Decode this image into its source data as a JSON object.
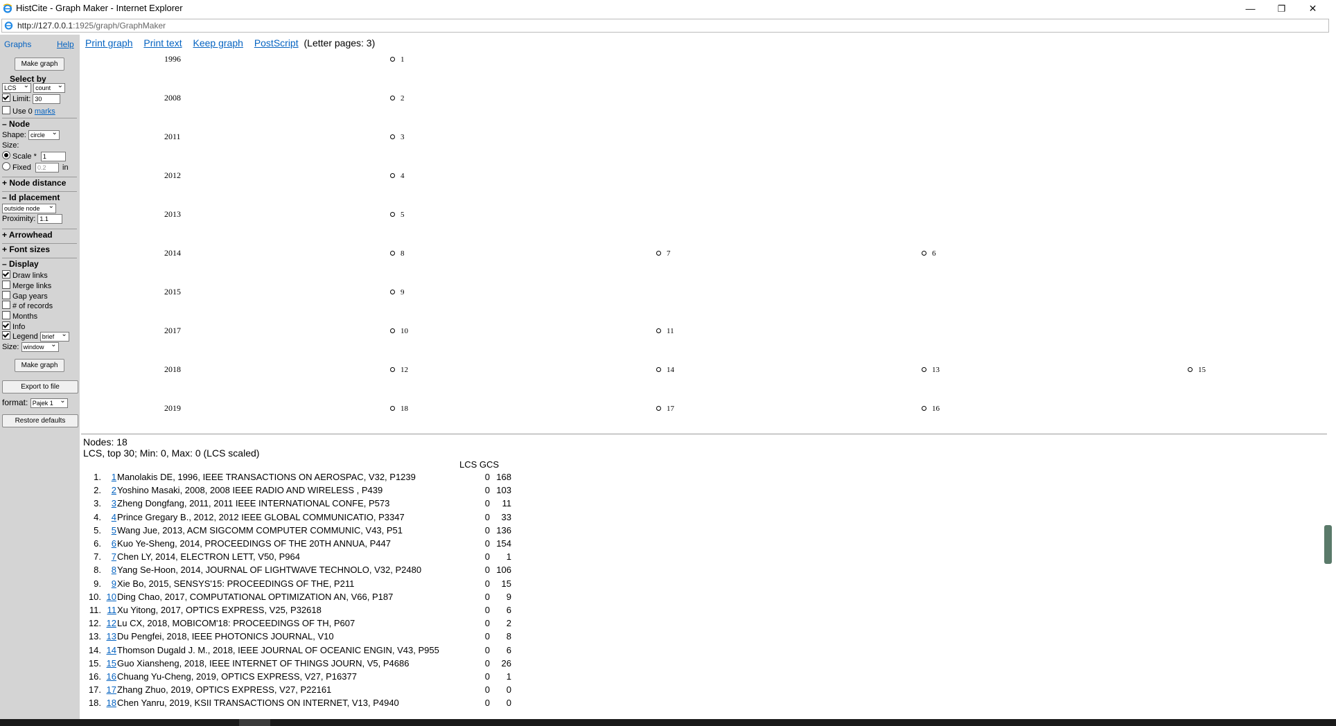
{
  "window": {
    "title": "HistCite - Graph Maker - Internet Explorer",
    "url_host": "http://127.0.0.1",
    "url_path": ":1925/graph/GraphMaker",
    "minimize_glyph": "—",
    "restore_glyph": "❐",
    "close_glyph": "✕"
  },
  "sidebar": {
    "graphs_link": "Graphs",
    "help_link": "Help",
    "make_graph_button": "Make graph",
    "select_by_label": "Select by",
    "select_by_value": "LCS",
    "count_value": "count",
    "limit_label": "Limit:",
    "limit_value": "30",
    "use_label": "Use 0",
    "marks_link": "marks",
    "node_section": "– Node",
    "shape_label": "Shape:",
    "shape_value": "circle",
    "size_label": "Size:",
    "scale_label": "Scale *",
    "scale_value": "1",
    "fixed_label": "Fixed",
    "fixed_value": "0.2",
    "fixed_unit": "in",
    "node_distance_section": "+ Node distance",
    "id_placement_section": "– Id placement",
    "id_placement_value": "outside node",
    "proximity_label": "Proximity:",
    "proximity_value": "1.1",
    "arrowhead_section": "+ Arrowhead",
    "font_sizes_section": "+ Font sizes",
    "display_section": "– Display",
    "draw_links": "Draw links",
    "merge_links": "Merge links",
    "gap_years": "Gap years",
    "num_records": "# of records",
    "months": "Months",
    "info": "Info",
    "legend": "Legend",
    "legend_value": "brief",
    "size_label2": "Size:",
    "size_value": "window",
    "make_graph_button2": "Make graph",
    "export_button": "Export to file",
    "format_label": "format:",
    "format_value": "Pajek 1",
    "restore_button": "Restore defaults"
  },
  "toplinks": {
    "print_graph": "Print graph",
    "print_text": "Print text",
    "keep_graph": "Keep graph",
    "postscript": "PostScript",
    "letter_pages": "(Letter pages: 3)"
  },
  "graph": {
    "years": [
      "1996",
      "2008",
      "2011",
      "2012",
      "2013",
      "2014",
      "2015",
      "2017",
      "2018",
      "2019"
    ],
    "nodes": [
      {
        "id": "1",
        "year": "1996",
        "col": 0
      },
      {
        "id": "2",
        "year": "2008",
        "col": 0
      },
      {
        "id": "3",
        "year": "2011",
        "col": 0
      },
      {
        "id": "4",
        "year": "2012",
        "col": 0
      },
      {
        "id": "5",
        "year": "2013",
        "col": 0
      },
      {
        "id": "8",
        "year": "2014",
        "col": 0
      },
      {
        "id": "7",
        "year": "2014",
        "col": 1
      },
      {
        "id": "6",
        "year": "2014",
        "col": 2
      },
      {
        "id": "9",
        "year": "2015",
        "col": 0
      },
      {
        "id": "10",
        "year": "2017",
        "col": 0
      },
      {
        "id": "11",
        "year": "2017",
        "col": 1
      },
      {
        "id": "12",
        "year": "2018",
        "col": 0
      },
      {
        "id": "14",
        "year": "2018",
        "col": 1
      },
      {
        "id": "13",
        "year": "2018",
        "col": 2
      },
      {
        "id": "15",
        "year": "2018",
        "col": 3
      },
      {
        "id": "18",
        "year": "2019",
        "col": 0
      },
      {
        "id": "17",
        "year": "2019",
        "col": 1
      },
      {
        "id": "16",
        "year": "2019",
        "col": 2
      }
    ]
  },
  "info": {
    "nodes_line": "Nodes: 18",
    "summary_line": "LCS, top 30; Min: 0, Max: 0 (LCS scaled)",
    "col_lcs": "LCS",
    "col_gcs": "GCS"
  },
  "records": [
    {
      "n": "1.",
      "id": "1",
      "text": "Manolakis DE, 1996, IEEE TRANSACTIONS ON AEROSPAC, V32, P1239",
      "lcs": "0",
      "gcs": "168"
    },
    {
      "n": "2.",
      "id": "2",
      "text": "Yoshino Masaki, 2008, 2008 IEEE RADIO AND WIRELESS , P439",
      "lcs": "0",
      "gcs": "103"
    },
    {
      "n": "3.",
      "id": "3",
      "text": "Zheng Dongfang, 2011, 2011 IEEE INTERNATIONAL CONFE, P573",
      "lcs": "0",
      "gcs": "11"
    },
    {
      "n": "4.",
      "id": "4",
      "text": "Prince Gregary B., 2012, 2012 IEEE GLOBAL COMMUNICATIO, P3347",
      "lcs": "0",
      "gcs": "33"
    },
    {
      "n": "5.",
      "id": "5",
      "text": "Wang Jue, 2013, ACM SIGCOMM COMPUTER COMMUNIC, V43, P51",
      "lcs": "0",
      "gcs": "136"
    },
    {
      "n": "6.",
      "id": "6",
      "text": "Kuo Ye-Sheng, 2014, PROCEEDINGS OF THE 20TH ANNUA, P447",
      "lcs": "0",
      "gcs": "154"
    },
    {
      "n": "7.",
      "id": "7",
      "text": "Chen LY, 2014, ELECTRON LETT, V50, P964",
      "lcs": "0",
      "gcs": "1"
    },
    {
      "n": "8.",
      "id": "8",
      "text": "Yang Se-Hoon, 2014, JOURNAL OF LIGHTWAVE TECHNOLO, V32, P2480",
      "lcs": "0",
      "gcs": "106"
    },
    {
      "n": "9.",
      "id": "9",
      "text": "Xie Bo, 2015, SENSYS'15: PROCEEDINGS OF THE, P211",
      "lcs": "0",
      "gcs": "15"
    },
    {
      "n": "10.",
      "id": "10",
      "text": "Ding Chao, 2017, COMPUTATIONAL OPTIMIZATION AN, V66, P187",
      "lcs": "0",
      "gcs": "9"
    },
    {
      "n": "11.",
      "id": "11",
      "text": "Xu Yitong, 2017, OPTICS EXPRESS, V25, P32618",
      "lcs": "0",
      "gcs": "6"
    },
    {
      "n": "12.",
      "id": "12",
      "text": "Lu CX, 2018, MOBICOM'18: PROCEEDINGS OF TH, P607",
      "lcs": "0",
      "gcs": "2"
    },
    {
      "n": "13.",
      "id": "13",
      "text": "Du Pengfei, 2018, IEEE PHOTONICS JOURNAL, V10",
      "lcs": "0",
      "gcs": "8"
    },
    {
      "n": "14.",
      "id": "14",
      "text": "Thomson Dugald J. M., 2018, IEEE JOURNAL OF OCEANIC ENGIN, V43, P955",
      "lcs": "0",
      "gcs": "6"
    },
    {
      "n": "15.",
      "id": "15",
      "text": "Guo Xiansheng, 2018, IEEE INTERNET OF THINGS JOURN, V5, P4686",
      "lcs": "0",
      "gcs": "26"
    },
    {
      "n": "16.",
      "id": "16",
      "text": "Chuang Yu-Cheng, 2019, OPTICS EXPRESS, V27, P16377",
      "lcs": "0",
      "gcs": "1"
    },
    {
      "n": "17.",
      "id": "17",
      "text": "Zhang Zhuo, 2019, OPTICS EXPRESS, V27, P22161",
      "lcs": "0",
      "gcs": "0"
    },
    {
      "n": "18.",
      "id": "18",
      "text": "Chen Yanru, 2019, KSII TRANSACTIONS ON INTERNET, V13, P4940",
      "lcs": "0",
      "gcs": "0"
    }
  ]
}
